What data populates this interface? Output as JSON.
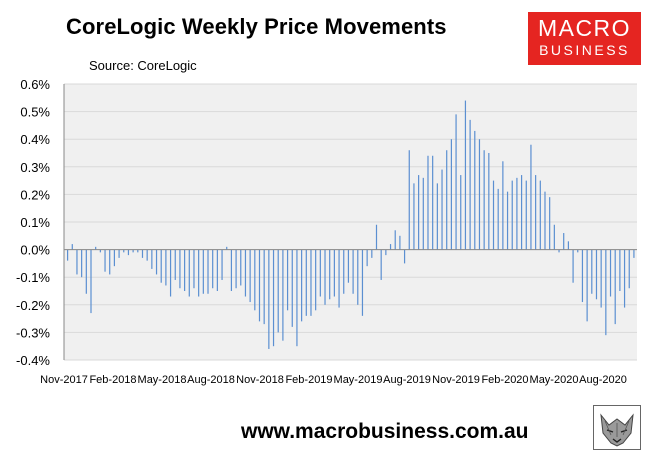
{
  "header": {
    "title": "CoreLogic Weekly Price Movements",
    "source": "Source: CoreLogic"
  },
  "logo": {
    "line1": "MACRO",
    "line2": "BUSINESS",
    "color": "#e52521"
  },
  "footer": {
    "url": "www.macrobusiness.com.au"
  },
  "colors": {
    "bar": "#5b8fd1",
    "plot_bg": "#f0f0f0",
    "grid": "#d9d9d9"
  },
  "chart_data": {
    "type": "bar",
    "title": "CoreLogic Weekly Price Movements",
    "xlabel": "",
    "ylabel": "",
    "ylim": [
      -0.4,
      0.6
    ],
    "grid": true,
    "legend": "none",
    "y_ticks": [
      "-0.4%",
      "-0.3%",
      "-0.2%",
      "-0.1%",
      "0.0%",
      "0.1%",
      "0.2%",
      "0.3%",
      "0.4%",
      "0.5%",
      "0.6%"
    ],
    "x_ticks": [
      "Nov-2017",
      "Feb-2018",
      "May-2018",
      "Aug-2018",
      "Nov-2018",
      "Feb-2019",
      "May-2019",
      "Aug-2019",
      "Nov-2019",
      "Feb-2020",
      "May-2020",
      "Aug-2020"
    ],
    "series": [
      {
        "values": [
          -0.04,
          0.02,
          -0.09,
          -0.1,
          -0.16,
          -0.23,
          0.01,
          -0.01,
          -0.08,
          -0.09,
          -0.06,
          -0.03,
          -0.01,
          -0.02,
          -0.01,
          -0.01,
          -0.03,
          -0.04,
          -0.07,
          -0.09,
          -0.12,
          -0.13,
          -0.17,
          -0.11,
          -0.14,
          -0.15,
          -0.17,
          -0.14,
          -0.17,
          -0.16,
          -0.16,
          -0.14,
          -0.15,
          -0.11,
          0.01,
          -0.15,
          -0.14,
          -0.13,
          -0.17,
          -0.19,
          -0.22,
          -0.26,
          -0.27,
          -0.36,
          -0.35,
          -0.3,
          -0.33,
          -0.22,
          -0.28,
          -0.35,
          -0.26,
          -0.24,
          -0.24,
          -0.22,
          -0.17,
          -0.2,
          -0.18,
          -0.17,
          -0.21,
          -0.16,
          -0.12,
          -0.16,
          -0.2,
          -0.24,
          -0.06,
          -0.03,
          0.09,
          -0.11,
          -0.02,
          0.02,
          0.07,
          0.05,
          -0.05,
          0.36,
          0.24,
          0.27,
          0.26,
          0.34,
          0.34,
          0.24,
          0.29,
          0.36,
          0.4,
          0.49,
          0.27,
          0.54,
          0.47,
          0.43,
          0.4,
          0.36,
          0.35,
          0.25,
          0.22,
          0.32,
          0.21,
          0.25,
          0.26,
          0.27,
          0.25,
          0.38,
          0.27,
          0.25,
          0.21,
          0.19,
          0.09,
          -0.01,
          0.06,
          0.03,
          -0.12,
          -0.01,
          -0.19,
          -0.26,
          -0.16,
          -0.18,
          -0.21,
          -0.31,
          -0.17,
          -0.27,
          -0.15,
          -0.21,
          -0.14,
          -0.03
        ]
      }
    ]
  }
}
